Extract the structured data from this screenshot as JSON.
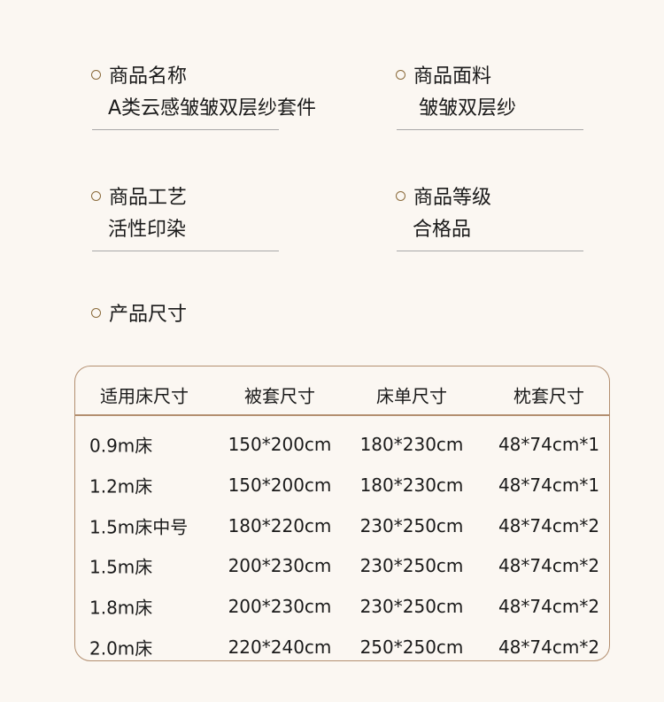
{
  "fields": [
    {
      "label": "商品名称",
      "value": "A类云感皱皱双层纱套件"
    },
    {
      "label": "商品面料",
      "value": "皱皱双层纱"
    },
    {
      "label": "商品工艺",
      "value": "活性印染"
    },
    {
      "label": "商品等级",
      "value": "合格品"
    }
  ],
  "size_label": "产品尺寸",
  "table": {
    "headers": [
      "适用床尺寸",
      "被套尺寸",
      "床单尺寸",
      "枕套尺寸"
    ],
    "rows": [
      [
        "0.9m床",
        "150*200cm",
        "180*230cm",
        "48*74cm*1"
      ],
      [
        "1.2m床",
        "150*200cm",
        "180*230cm",
        "48*74cm*1"
      ],
      [
        "1.5m床中号",
        "180*220cm",
        "230*250cm",
        "48*74cm*2"
      ],
      [
        "1.5m床",
        "200*230cm",
        "230*250cm",
        "48*74cm*2"
      ],
      [
        "1.8m床",
        "200*230cm",
        "230*250cm",
        "48*74cm*2"
      ],
      [
        "2.0m床",
        "220*240cm",
        "250*250cm",
        "48*74cm*2"
      ]
    ]
  }
}
